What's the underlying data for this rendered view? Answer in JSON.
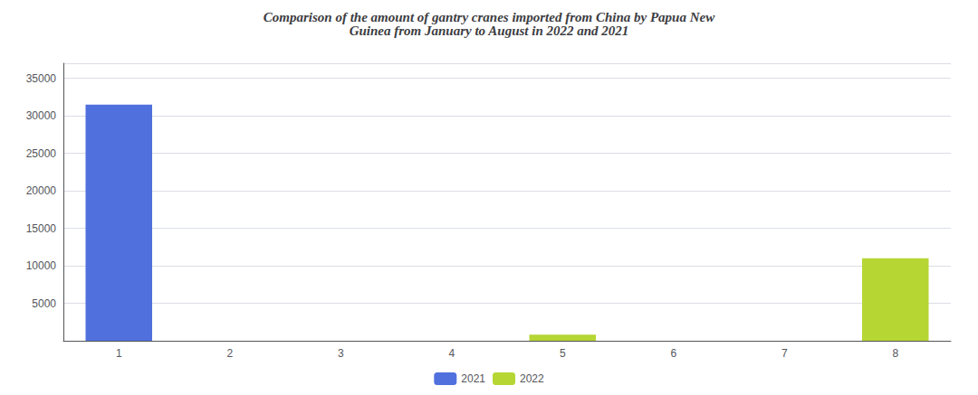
{
  "chart_data": {
    "type": "bar",
    "title": "Comparison of the amount of gantry cranes imported from China by Papua New\nGuinea from January to August in 2022 and 2021",
    "categories": [
      1,
      2,
      3,
      4,
      5,
      6,
      7,
      8
    ],
    "series": [
      {
        "name": "2021",
        "values": [
          31500,
          0,
          0,
          0,
          0,
          0,
          0,
          0
        ]
      },
      {
        "name": "2022",
        "values": [
          0,
          0,
          0,
          0,
          800,
          0,
          0,
          11000
        ]
      }
    ],
    "ylim": [
      0,
      37000
    ],
    "yticks": [
      5000,
      10000,
      15000,
      20000,
      25000,
      30000,
      35000
    ],
    "grid": true,
    "legend": "bottom"
  }
}
